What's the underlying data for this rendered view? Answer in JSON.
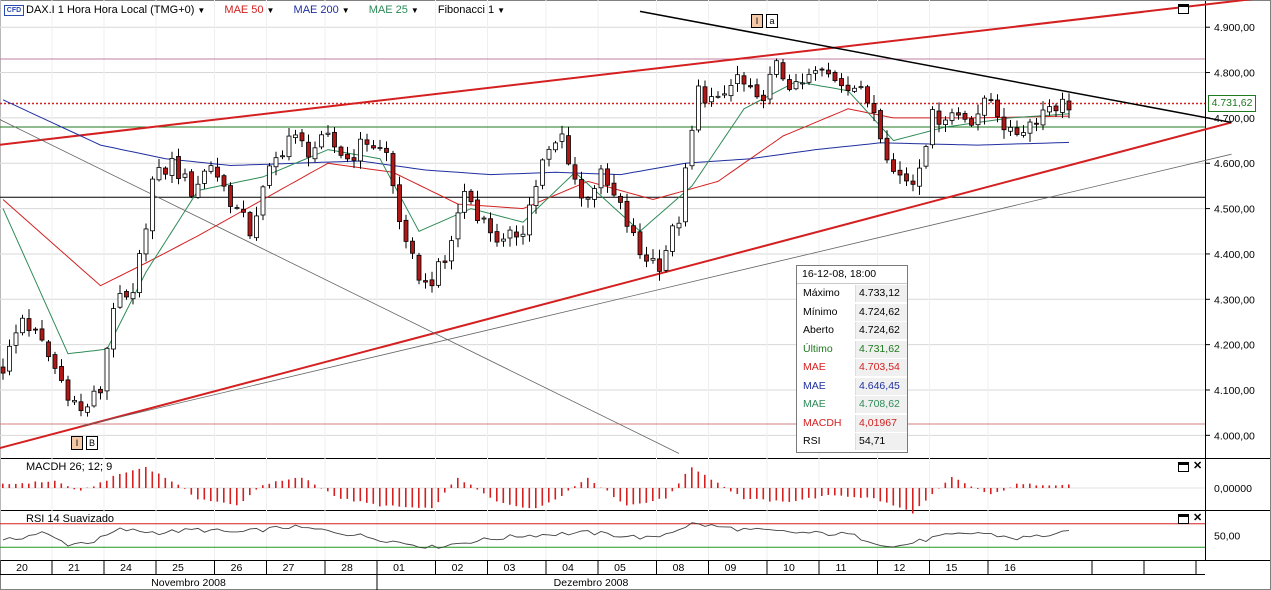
{
  "header": {
    "instrument": "DAX.I 1 Hora Hora Local (TMG+0)",
    "cfd_badge": "CFD",
    "indicators": [
      {
        "label": "MAE 50",
        "color": "#d42020"
      },
      {
        "label": "MAE 200",
        "color": "#1f2fa0"
      },
      {
        "label": "MAE 25",
        "color": "#2e8b57"
      },
      {
        "label": "Fibonacci 1",
        "color": "#000000"
      }
    ]
  },
  "macd_panel": {
    "label": "MACDH 26; 12; 9",
    "tick": "0,00000"
  },
  "rsi_panel": {
    "label": "RSI 14 Suavizado",
    "tick": "50,00"
  },
  "price_tag": "4.731,62",
  "markers": {
    "top": [
      "I",
      "a"
    ],
    "bottom": [
      "I",
      "B"
    ]
  },
  "infobox": {
    "title": "16-12-08, 18:00",
    "rows": [
      {
        "key": "Máximo",
        "value": "4.733,12",
        "color": "#000000"
      },
      {
        "key": "Mínimo",
        "value": "4.724,62",
        "color": "#000000"
      },
      {
        "key": "Aberto",
        "value": "4.724,62",
        "color": "#000000"
      },
      {
        "key": "Último",
        "value": "4.731,62",
        "color": "#1d7a1d"
      },
      {
        "key": "MAE",
        "value": "4.703,54",
        "color": "#d42020"
      },
      {
        "key": "MAE",
        "value": "4.646,45",
        "color": "#1f2fa0"
      },
      {
        "key": "MAE",
        "value": "4.708,62",
        "color": "#2e8b57"
      },
      {
        "key": "MACDH",
        "value": "4,01967",
        "color": "#d42020"
      },
      {
        "key": "RSI",
        "value": "54,71",
        "color": "#000000"
      }
    ]
  },
  "chart_data": {
    "type": "candlestick",
    "title": "DAX.I 1 Hora",
    "y_ticks": [
      "4.900,00",
      "4.800,00",
      "4.700,00",
      "4.600,00",
      "4.500,00",
      "4.400,00",
      "4.300,00",
      "4.200,00",
      "4.100,00",
      "4.000,00"
    ],
    "y_tick_values": [
      4900,
      4800,
      4700,
      4600,
      4500,
      4400,
      4300,
      4200,
      4100,
      4000
    ],
    "ylim": [
      3950,
      4960
    ],
    "x_day_labels": [
      "20",
      "21",
      "24",
      "25",
      "26",
      "27",
      "28",
      "01",
      "02",
      "03",
      "04",
      "05",
      "08",
      "09",
      "10",
      "11",
      "12",
      "15",
      "16"
    ],
    "x_months": [
      "Novembro 2008",
      "Dezembro 2008"
    ],
    "close_path": [
      [
        0,
        4150
      ],
      [
        3,
        4260
      ],
      [
        6,
        4200
      ],
      [
        9,
        4120
      ],
      [
        12,
        4050
      ],
      [
        15,
        4100
      ],
      [
        17,
        4290
      ],
      [
        20,
        4300
      ],
      [
        23,
        4560
      ],
      [
        26,
        4600
      ],
      [
        29,
        4540
      ],
      [
        32,
        4600
      ],
      [
        35,
        4520
      ],
      [
        38,
        4450
      ],
      [
        41,
        4580
      ],
      [
        44,
        4660
      ],
      [
        47,
        4630
      ],
      [
        50,
        4650
      ],
      [
        53,
        4610
      ],
      [
        56,
        4650
      ],
      [
        59,
        4620
      ],
      [
        62,
        4410
      ],
      [
        65,
        4330
      ],
      [
        68,
        4380
      ],
      [
        71,
        4540
      ],
      [
        74,
        4470
      ],
      [
        77,
        4420
      ],
      [
        80,
        4460
      ],
      [
        83,
        4600
      ],
      [
        86,
        4660
      ],
      [
        89,
        4520
      ],
      [
        92,
        4570
      ],
      [
        95,
        4500
      ],
      [
        98,
        4400
      ],
      [
        101,
        4380
      ],
      [
        104,
        4480
      ],
      [
        107,
        4760
      ],
      [
        110,
        4730
      ],
      [
        113,
        4790
      ],
      [
        116,
        4730
      ],
      [
        119,
        4810
      ],
      [
        122,
        4760
      ],
      [
        125,
        4800
      ],
      [
        128,
        4790
      ],
      [
        131,
        4770
      ],
      [
        134,
        4720
      ],
      [
        137,
        4580
      ],
      [
        140,
        4560
      ],
      [
        143,
        4700
      ],
      [
        146,
        4710
      ],
      [
        149,
        4700
      ],
      [
        152,
        4740
      ],
      [
        155,
        4660
      ],
      [
        158,
        4690
      ],
      [
        161,
        4730
      ],
      [
        164,
        4730
      ]
    ],
    "series": [
      {
        "name": "MAE 50",
        "color": "#d42020",
        "values": [
          [
            0,
            4520
          ],
          [
            15,
            4330
          ],
          [
            22,
            4380
          ],
          [
            30,
            4440
          ],
          [
            40,
            4520
          ],
          [
            50,
            4600
          ],
          [
            60,
            4580
          ],
          [
            70,
            4510
          ],
          [
            80,
            4500
          ],
          [
            90,
            4560
          ],
          [
            100,
            4520
          ],
          [
            110,
            4560
          ],
          [
            120,
            4660
          ],
          [
            130,
            4720
          ],
          [
            137,
            4700
          ],
          [
            150,
            4700
          ],
          [
            164,
            4704
          ]
        ]
      },
      {
        "name": "MAE 200",
        "color": "#1f2fa0",
        "values": [
          [
            0,
            4740
          ],
          [
            15,
            4640
          ],
          [
            25,
            4610
          ],
          [
            35,
            4595
          ],
          [
            45,
            4600
          ],
          [
            55,
            4605
          ],
          [
            65,
            4585
          ],
          [
            75,
            4575
          ],
          [
            85,
            4580
          ],
          [
            95,
            4575
          ],
          [
            105,
            4600
          ],
          [
            115,
            4610
          ],
          [
            125,
            4630
          ],
          [
            135,
            4645
          ],
          [
            150,
            4640
          ],
          [
            164,
            4646
          ]
        ]
      },
      {
        "name": "MAE 25",
        "color": "#2e8b57",
        "values": [
          [
            0,
            4500
          ],
          [
            10,
            4180
          ],
          [
            16,
            4190
          ],
          [
            22,
            4360
          ],
          [
            30,
            4540
          ],
          [
            40,
            4570
          ],
          [
            50,
            4630
          ],
          [
            58,
            4610
          ],
          [
            64,
            4450
          ],
          [
            72,
            4500
          ],
          [
            80,
            4470
          ],
          [
            88,
            4580
          ],
          [
            98,
            4450
          ],
          [
            106,
            4550
          ],
          [
            114,
            4720
          ],
          [
            122,
            4780
          ],
          [
            130,
            4760
          ],
          [
            137,
            4650
          ],
          [
            145,
            4680
          ],
          [
            155,
            4700
          ],
          [
            164,
            4709
          ]
        ]
      }
    ],
    "horizontal_lines": [
      {
        "value": 4830,
        "color": "#c080a0"
      },
      {
        "value": 4731.62,
        "color": "#d42020",
        "style": "dotted"
      },
      {
        "value": 4680,
        "color": "#1d7a1d"
      },
      {
        "value": 4525,
        "color": "#000000"
      },
      {
        "value": 4025,
        "color": "#d08080"
      }
    ],
    "trend_lines": [
      {
        "color": "#d42020",
        "from": [
          -1,
          4640
        ],
        "to": [
          194,
          4965
        ],
        "width": 2
      },
      {
        "color": "#d42020",
        "from": [
          -1,
          3970
        ],
        "to": [
          189,
          4690
        ],
        "width": 2
      },
      {
        "color": "#000000",
        "from": [
          98,
          4935
        ],
        "to": [
          189,
          4690
        ],
        "width": 1.5
      },
      {
        "color": "#666666",
        "from": [
          12,
          4020
        ],
        "to": [
          189,
          4620
        ],
        "width": 0.8
      },
      {
        "color": "#666666",
        "from": [
          -1,
          4700
        ],
        "to": [
          104,
          3960
        ],
        "width": 0.8
      }
    ],
    "macd": {
      "label": "MACDH 26; 12; 9",
      "values_path": [
        [
          0,
          1
        ],
        [
          8,
          2
        ],
        [
          12,
          -1
        ],
        [
          18,
          4
        ],
        [
          22,
          6
        ],
        [
          26,
          2
        ],
        [
          30,
          -3
        ],
        [
          36,
          -5
        ],
        [
          40,
          1
        ],
        [
          46,
          3
        ],
        [
          52,
          -3
        ],
        [
          58,
          -5
        ],
        [
          66,
          -6
        ],
        [
          70,
          3
        ],
        [
          76,
          -4
        ],
        [
          82,
          -6
        ],
        [
          86,
          -2
        ],
        [
          90,
          3
        ],
        [
          96,
          -5
        ],
        [
          102,
          -3
        ],
        [
          106,
          6
        ],
        [
          114,
          -3
        ],
        [
          120,
          -4
        ],
        [
          128,
          -2
        ],
        [
          134,
          -3
        ],
        [
          140,
          -7
        ],
        [
          146,
          3
        ],
        [
          152,
          -2
        ],
        [
          156,
          1
        ],
        [
          164,
          1
        ]
      ]
    },
    "rsi": {
      "label": "RSI 14 Suavizado",
      "levels": [
        70,
        30
      ],
      "values_path": [
        [
          0,
          40
        ],
        [
          6,
          55
        ],
        [
          10,
          35
        ],
        [
          14,
          40
        ],
        [
          18,
          60
        ],
        [
          24,
          55
        ],
        [
          30,
          60
        ],
        [
          36,
          55
        ],
        [
          44,
          65
        ],
        [
          50,
          58
        ],
        [
          56,
          48
        ],
        [
          60,
          40
        ],
        [
          66,
          30
        ],
        [
          72,
          40
        ],
        [
          80,
          50
        ],
        [
          90,
          55
        ],
        [
          100,
          45
        ],
        [
          106,
          70
        ],
        [
          114,
          60
        ],
        [
          122,
          55
        ],
        [
          130,
          52
        ],
        [
          137,
          30
        ],
        [
          144,
          48
        ],
        [
          150,
          55
        ],
        [
          156,
          45
        ],
        [
          164,
          55
        ]
      ]
    }
  }
}
